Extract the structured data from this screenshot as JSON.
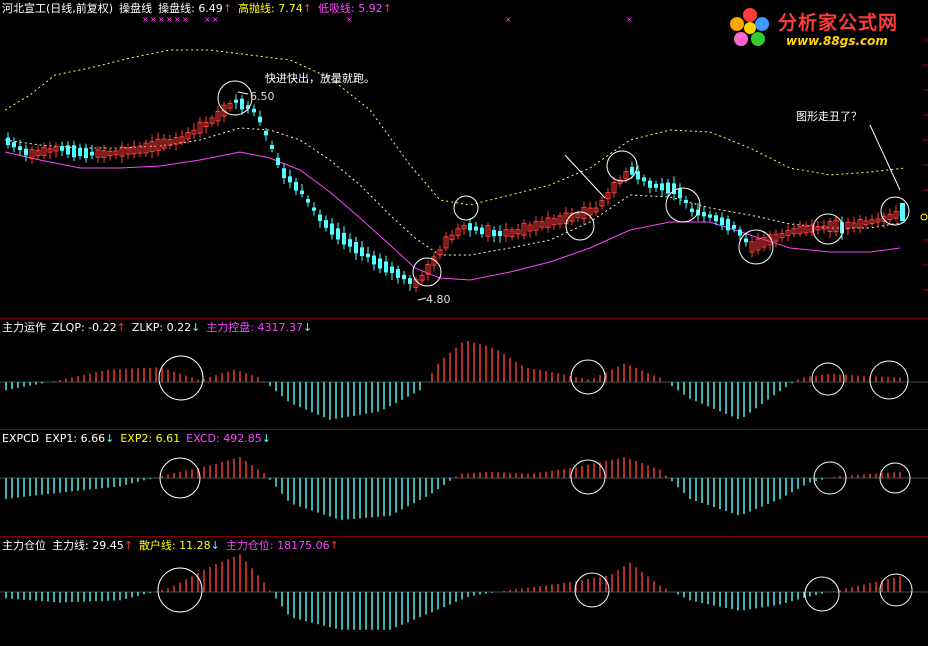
{
  "main": {
    "stock_title": "河北宣工(日线,前复权)",
    "indicator_name": "操盘线",
    "indicators": [
      {
        "label": "操盘线:",
        "value": "6.49",
        "arrow": "↑",
        "color": "#ffffff"
      },
      {
        "label": "高抛线:",
        "value": "7.74",
        "arrow": "↑",
        "color": "#ffff00"
      },
      {
        "label": "低吸线:",
        "value": "5.92",
        "arrow": "↑",
        "color": "#ff44ff"
      }
    ],
    "annotation_top": "快进快出，放量就跑。",
    "annotation_right": "图形走丑了？",
    "high_mark": "6.50",
    "low_mark": "4.80"
  },
  "panel1": {
    "name": "主力运作",
    "items": [
      {
        "label": "ZLQP:",
        "value": "-0.22",
        "arrow": "↑",
        "color": "#ffffff"
      },
      {
        "label": "ZLKP:",
        "value": "0.22",
        "arrow": "↓",
        "color": "#ffffff"
      },
      {
        "label": "主力控盘:",
        "value": "4317.37",
        "arrow": "↓",
        "color": "#ff44ff"
      }
    ]
  },
  "panel2": {
    "name": "EXPCD",
    "items": [
      {
        "label": "EXP1:",
        "value": "6.66",
        "arrow": "↓",
        "color": "#ffffff"
      },
      {
        "label": "EXP2:",
        "value": "6.61",
        "arrow": "",
        "color": "#ffff00"
      },
      {
        "label": "EXCD:",
        "value": "492.85",
        "arrow": "↓",
        "color": "#ff44ff"
      }
    ]
  },
  "panel3": {
    "name": "主力仓位",
    "items": [
      {
        "label": "主力线:",
        "value": "29.45",
        "arrow": "↑",
        "color": "#ffffff"
      },
      {
        "label": "散户线:",
        "value": "11.28",
        "arrow": "↓",
        "color": "#ffff00"
      },
      {
        "label": "主力仓位:",
        "value": "18175.06",
        "arrow": "↑",
        "color": "#ff44ff"
      }
    ]
  },
  "logo": {
    "text": "分析家公式网",
    "url": "www.88gs.com"
  },
  "colors": {
    "up": "#ff3c3c",
    "down": "#54ffff",
    "magenta": "#ff44ff",
    "yellow": "#ffff66",
    "separator": "#7a0000"
  }
}
